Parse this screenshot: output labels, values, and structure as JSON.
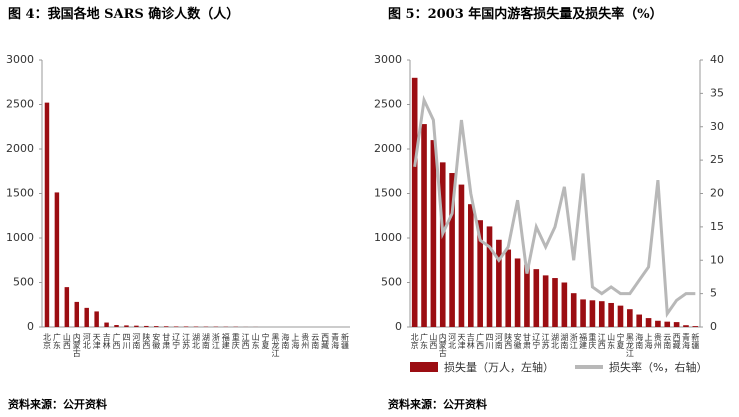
{
  "chart_data": [
    {
      "type": "bar",
      "title": "图 4：我国各地 SARS 确诊人数（人）",
      "source": "资料来源：公开资料",
      "categories": [
        "北京",
        "广东",
        "山西",
        "内蒙古",
        "河北",
        "天津",
        "吉林",
        "广西",
        "四川",
        "河南",
        "陕西",
        "安徽",
        "甘肃",
        "辽宁",
        "江苏",
        "湖北",
        "湖南",
        "浙江",
        "福建",
        "重庆",
        "江西",
        "山东",
        "宁夏",
        "黑龙江",
        "海南",
        "上海",
        "贵州",
        "云南",
        "西藏",
        "青海",
        "新疆"
      ],
      "values": [
        2521,
        1512,
        448,
        282,
        215,
        175,
        50,
        22,
        18,
        15,
        12,
        10,
        8,
        6,
        6,
        5,
        4,
        4,
        3,
        3,
        1,
        1,
        0,
        0,
        0,
        0,
        0,
        0,
        0,
        0,
        0
      ],
      "color": "#9b0d12",
      "ylim": [
        0,
        3000
      ],
      "yticks": [
        0,
        500,
        1000,
        1500,
        2000,
        2500,
        3000
      ]
    },
    {
      "type": "combo",
      "title": "图 5：2003 年国内游客损失量及损失率（%）",
      "source": "资料来源：公开资料",
      "categories": [
        "北京",
        "广东",
        "山西",
        "内蒙古",
        "河北",
        "天津",
        "吉林",
        "广西",
        "四川",
        "河南",
        "陕西",
        "安徽",
        "甘肃",
        "辽宁",
        "江苏",
        "湖北",
        "湖南",
        "浙江",
        "福建",
        "重庆",
        "江西",
        "山东",
        "宁夏",
        "黑龙江",
        "海南",
        "上海",
        "贵州",
        "云南",
        "西藏",
        "青海",
        "新疆"
      ],
      "series": [
        {
          "name": "损失量（万人，左轴）",
          "type": "bar",
          "color": "#9b0d12",
          "values": [
            2800,
            2280,
            2100,
            1850,
            1730,
            1600,
            1380,
            1200,
            1130,
            980,
            870,
            770,
            700,
            650,
            580,
            550,
            500,
            380,
            310,
            300,
            290,
            270,
            240,
            200,
            140,
            100,
            70,
            60,
            55,
            20,
            10
          ]
        },
        {
          "name": "损失率（%，右轴）",
          "type": "line",
          "axis": "y2",
          "color": "#b8b8b8",
          "values": [
            24,
            34,
            31,
            14,
            17,
            31,
            20,
            13,
            12,
            10,
            12,
            19,
            8,
            15,
            12,
            15,
            21,
            10,
            23,
            6,
            5,
            6,
            5,
            5,
            7,
            9,
            22,
            2,
            4,
            5,
            5
          ]
        }
      ],
      "ylim": [
        0,
        3000
      ],
      "yticks": [
        0,
        500,
        1000,
        1500,
        2000,
        2500,
        3000
      ],
      "y2lim": [
        0,
        40
      ],
      "y2ticks": [
        0,
        5,
        10,
        15,
        20,
        25,
        30,
        35,
        40
      ]
    }
  ]
}
